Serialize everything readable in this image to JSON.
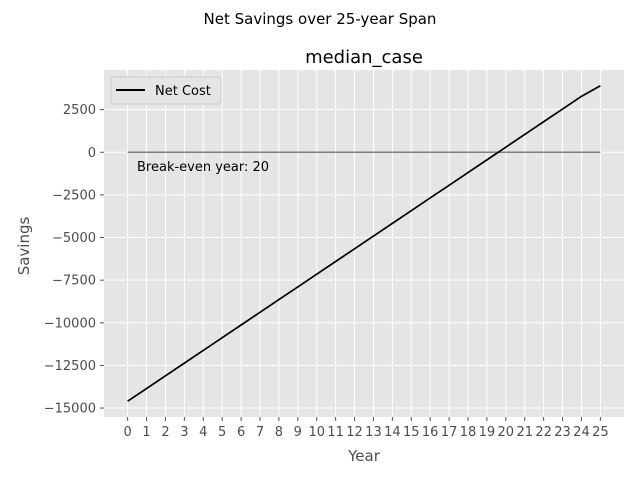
{
  "suptitle": "Net Savings over 25-year Span",
  "chart_data": {
    "type": "line",
    "title": "median_case",
    "xlabel": "Year",
    "ylabel": "Savings",
    "x": [
      0,
      1,
      2,
      3,
      4,
      5,
      6,
      7,
      8,
      9,
      10,
      11,
      12,
      13,
      14,
      15,
      16,
      17,
      18,
      19,
      20,
      21,
      22,
      23,
      24,
      25
    ],
    "series": [
      {
        "name": "Net Cost",
        "color": "#000000",
        "values": [
          -14600,
          -13855,
          -13110,
          -12365,
          -11620,
          -10875,
          -10130,
          -9385,
          -8640,
          -7895,
          -7150,
          -6405,
          -5660,
          -4915,
          -4170,
          -3425,
          -2680,
          -1935,
          -1190,
          -445,
          300,
          1045,
          1790,
          2535,
          3280,
          3900
        ]
      }
    ],
    "reference_line": {
      "y": 0,
      "x_range": [
        0,
        25
      ],
      "color": "#808080"
    },
    "annotation": "Break-even year: 20",
    "xlim": [
      -1.25,
      26.25
    ],
    "ylim": [
      -15525,
      4825
    ],
    "xticks": [
      0,
      1,
      2,
      3,
      4,
      5,
      6,
      7,
      8,
      9,
      10,
      11,
      12,
      13,
      14,
      15,
      16,
      17,
      18,
      19,
      20,
      21,
      22,
      23,
      24,
      25
    ],
    "yticks": [
      -15000,
      -12500,
      -10000,
      -7500,
      -5000,
      -2500,
      0,
      2500
    ],
    "ytick_labels": [
      "−15000",
      "−12500",
      "−10000",
      "−7500",
      "−5000",
      "−2500",
      "0",
      "2500"
    ],
    "grid": true,
    "legend_position": "top-left",
    "style": {
      "background": "#e5e5e5",
      "grid_color": "#ffffff"
    }
  }
}
